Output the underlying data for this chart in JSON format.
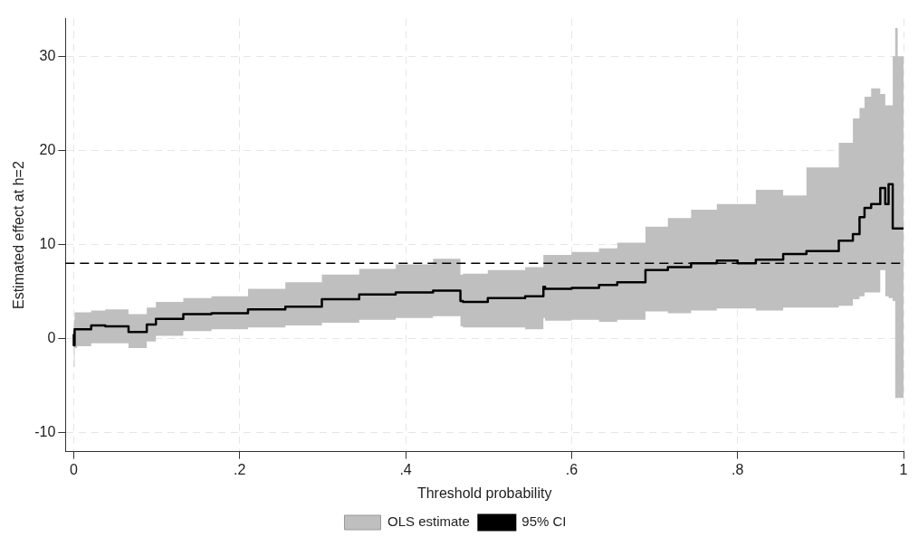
{
  "chart_data": {
    "type": "step",
    "xlabel": "Threshold probability",
    "ylabel": "Estimated effect at h=2",
    "x": [
      0,
      0.001,
      0.004,
      0.021,
      0.038,
      0.066,
      0.088,
      0.099,
      0.132,
      0.166,
      0.21,
      0.255,
      0.299,
      0.344,
      0.388,
      0.433,
      0.466,
      0.469,
      0.499,
      0.544,
      0.566,
      0.568,
      0.6,
      0.633,
      0.655,
      0.689,
      0.716,
      0.744,
      0.775,
      0.8,
      0.822,
      0.855,
      0.883,
      0.922,
      0.939,
      0.947,
      0.953,
      0.961,
      0.972,
      0.978,
      0.982,
      0.987,
      0.99,
      0.993,
      1
    ],
    "series": [
      {
        "name": "OLS estimate",
        "type": "area",
        "color": "#bfbfbf",
        "lower": [
          -3.6,
          -3,
          -1,
          -0.8,
          -0.5,
          -0.5,
          -1,
          -0.3,
          0.3,
          0.8,
          1,
          1.2,
          1.4,
          1.7,
          2,
          2.2,
          2.4,
          1.3,
          1.2,
          1.2,
          1,
          2.2,
          1.9,
          2,
          1.8,
          2,
          2.9,
          2.7,
          3,
          3.2,
          3.2,
          3,
          3.3,
          3.3,
          3.5,
          4.2,
          4.5,
          4.9,
          4.9,
          7.3,
          4.5,
          4.3,
          4,
          -6.3,
          -6.3
        ],
        "values": [
          null,
          null,
          null,
          null,
          null,
          null,
          null,
          null,
          null,
          null,
          null,
          null,
          null,
          null,
          null,
          null,
          null,
          null,
          null,
          null,
          null,
          null,
          null,
          null,
          null,
          null,
          null,
          null,
          null,
          null,
          null,
          null,
          null,
          null,
          null,
          null,
          null,
          null,
          null,
          null,
          null,
          null,
          null,
          null,
          null
        ],
        "upper": [
          4,
          2,
          2.8,
          2.8,
          3,
          3.1,
          2.6,
          3.3,
          3.9,
          4.3,
          4.5,
          5.3,
          6,
          6.8,
          7.4,
          7.9,
          8.5,
          6.8,
          6.9,
          7.3,
          7.6,
          8.9,
          8.9,
          9.2,
          9.6,
          10.2,
          11.9,
          12.8,
          13.7,
          14.3,
          14.3,
          15.8,
          15.2,
          18.2,
          20.8,
          23.4,
          24.5,
          25.7,
          26.6,
          26,
          24.8,
          24.8,
          30,
          33,
          30
        ]
      },
      {
        "name": "95% CI",
        "type": "step",
        "color": "#000000",
        "values": [
          0.5,
          -0.7,
          1,
          1,
          1.4,
          1.3,
          0.7,
          1.5,
          2.1,
          2.6,
          2.7,
          3.1,
          3.4,
          4.2,
          4.7,
          4.9,
          5.1,
          4,
          3.9,
          4.3,
          4.5,
          5.5,
          5.3,
          5.4,
          5.7,
          6,
          7.3,
          7.6,
          8,
          8.3,
          8,
          8.4,
          9,
          9.3,
          10.4,
          11.1,
          12.9,
          13.9,
          14.3,
          16,
          14.3,
          16.4,
          11.7,
          11.7,
          11.7
        ]
      }
    ],
    "xlim": [
      -0.01,
      1
    ],
    "xticks": [
      {
        "value": 0,
        "label": "0"
      },
      {
        "value": 0.2,
        "label": ".2"
      },
      {
        "value": 0.4,
        "label": ".4"
      },
      {
        "value": 0.6,
        "label": ".6"
      },
      {
        "value": 0.8,
        "label": ".8"
      },
      {
        "value": 1,
        "label": "1"
      }
    ],
    "ylim": [
      -12,
      34
    ],
    "yticks": [
      -10,
      0,
      10,
      20,
      30
    ],
    "ref_lines": [
      {
        "axis": "y",
        "value": 8,
        "color": "#000000",
        "line_style": "dashed"
      }
    ],
    "grid": true,
    "legend": "bottom"
  }
}
